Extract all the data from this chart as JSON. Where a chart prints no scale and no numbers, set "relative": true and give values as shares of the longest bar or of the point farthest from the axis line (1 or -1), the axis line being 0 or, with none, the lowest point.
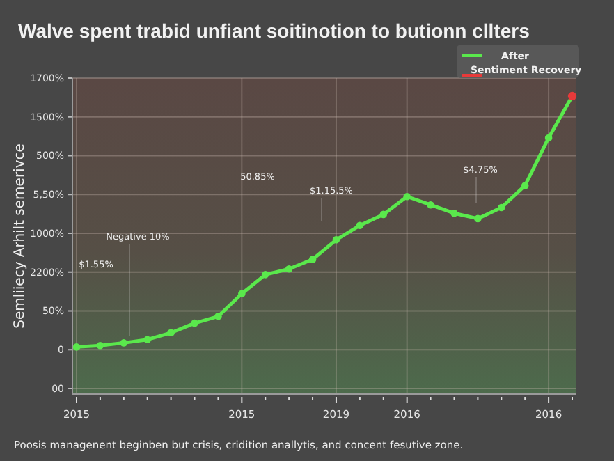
{
  "chart_data": {
    "type": "line",
    "title": "Walve spent trabid unfiant soitinotion to butionn cllters",
    "ylabel": "Semliiecy Arhilt semerivce",
    "categories": [
      "2015",
      null,
      null,
      null,
      null,
      null,
      null,
      "2015",
      null,
      null,
      null,
      "2019",
      null,
      null,
      "2016",
      null,
      null,
      null,
      null,
      null,
      "2016",
      null
    ],
    "relative": true,
    "grid": true,
    "legend": "top right",
    "marker": "circle",
    "series": [
      {
        "name": "After",
        "color": "#5ae84c",
        "values": [
          0.158,
          0.163,
          0.172,
          0.183,
          0.206,
          0.238,
          0.261,
          0.337,
          0.401,
          0.42,
          0.452,
          0.518,
          0.566,
          0.603,
          0.663,
          0.635,
          0.607,
          0.589,
          0.626,
          0.7,
          0.86,
          1
        ]
      },
      {
        "name": "Sentiment Recovery",
        "type": "scatter",
        "color": "#e83a3a",
        "values": [
          null,
          null,
          null,
          null,
          null,
          null,
          null,
          null,
          null,
          null,
          null,
          null,
          null,
          null,
          null,
          null,
          null,
          null,
          null,
          null,
          null,
          1
        ]
      }
    ],
    "annotations": [
      "1700%",
      "1500%",
      "500%",
      "5,50%",
      "1000%",
      "2200%",
      "50%",
      "0",
      "00",
      "$1.55%",
      "Negative 10%",
      "50.85%",
      "$1.15.5%",
      "$4.75%",
      "Poosis managenent beginben but crisis, cridition anallytis, and concent fesutive zone."
    ]
  }
}
